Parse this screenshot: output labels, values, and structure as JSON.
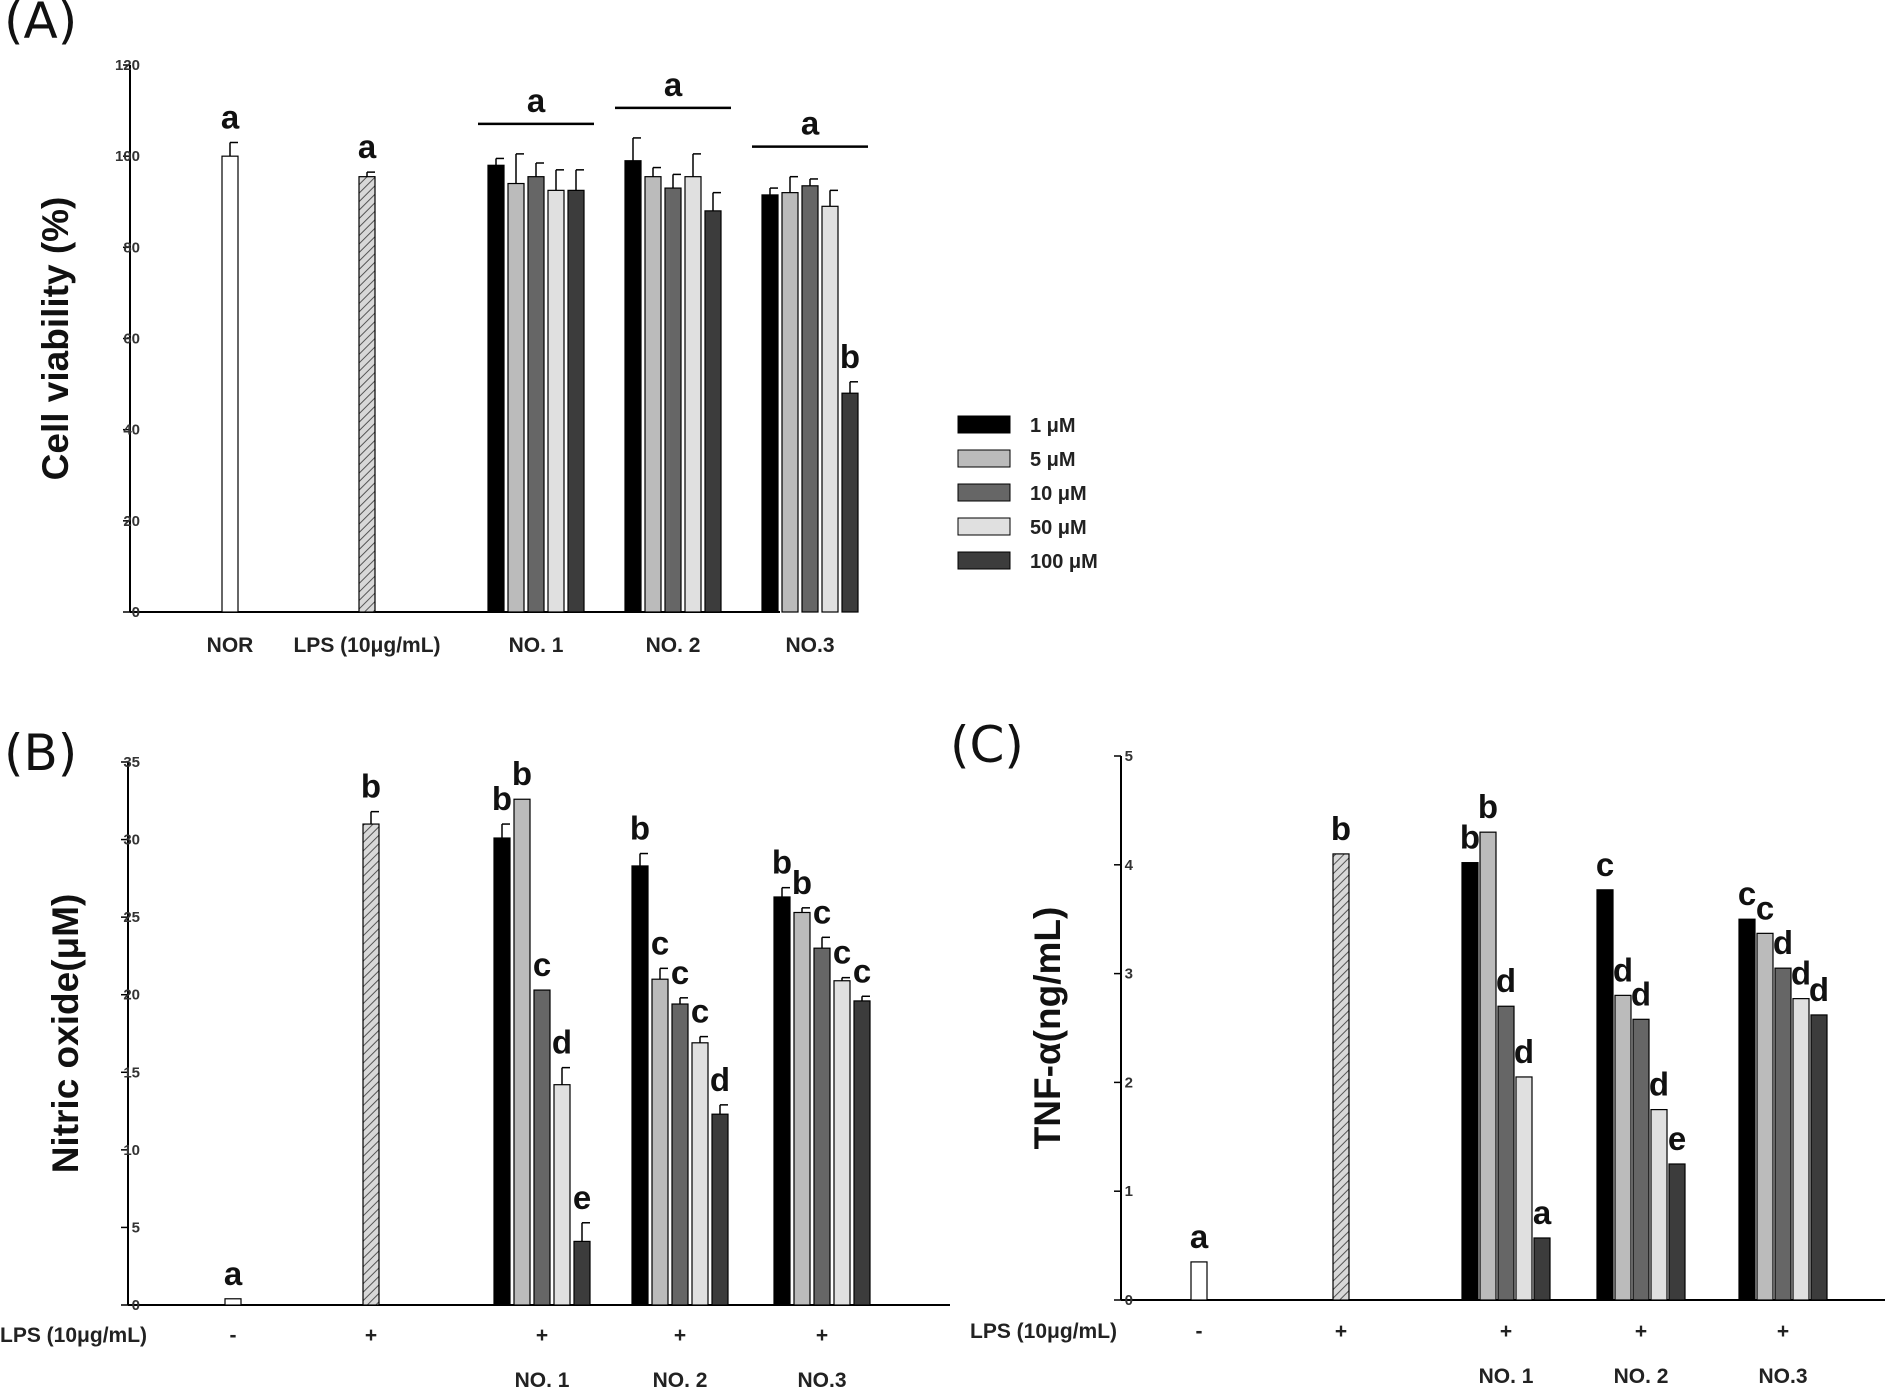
{
  "panels": {
    "A": {
      "letter": "(A)"
    },
    "B": {
      "letter": "(B)"
    },
    "C": {
      "letter": "(C)"
    }
  },
  "legend": {
    "items": [
      {
        "label": "1 μM",
        "color": "#000000"
      },
      {
        "label": "5 μM",
        "color": "#bbbbbb"
      },
      {
        "label": "10 μM",
        "color": "#666666"
      },
      {
        "label": "50 μM",
        "color": "#e0e0e0"
      },
      {
        "label": "100 μM",
        "color": "#3c3c3c"
      }
    ]
  },
  "chart_data": [
    {
      "id": "A",
      "type": "bar",
      "ylabel": "Cell viability (%)",
      "ylim": [
        0,
        120
      ],
      "yticks": [
        0,
        20,
        40,
        60,
        80,
        100,
        120
      ],
      "categories": [
        "NOR",
        "LPS (10μg/mL)",
        "NO. 1",
        "NO. 2",
        "NO.3"
      ],
      "groups": [
        {
          "category": "NOR",
          "bars": [
            {
              "series": "NOR",
              "value": 100,
              "error": 3,
              "label": "a"
            }
          ]
        },
        {
          "category": "LPS (10μg/mL)",
          "bars": [
            {
              "series": "LPS",
              "value": 95.5,
              "error": 1,
              "label": "a"
            }
          ]
        },
        {
          "category": "NO. 1",
          "group_label": "a",
          "bars": [
            {
              "series": "1 μM",
              "value": 98,
              "error": 1.5
            },
            {
              "series": "5 μM",
              "value": 94,
              "error": 6.5
            },
            {
              "series": "10 μM",
              "value": 95.5,
              "error": 3
            },
            {
              "series": "50 μM",
              "value": 92.5,
              "error": 4.5
            },
            {
              "series": "100 μM",
              "value": 92.5,
              "error": 4.5
            }
          ]
        },
        {
          "category": "NO. 2",
          "group_label": "a",
          "bars": [
            {
              "series": "1 μM",
              "value": 99,
              "error": 5
            },
            {
              "series": "5 μM",
              "value": 95.5,
              "error": 2
            },
            {
              "series": "10 μM",
              "value": 93,
              "error": 3
            },
            {
              "series": "50 μM",
              "value": 95.5,
              "error": 5
            },
            {
              "series": "100 μM",
              "value": 88,
              "error": 4
            }
          ]
        },
        {
          "category": "NO.3",
          "group_label": "a",
          "bars": [
            {
              "series": "1 μM",
              "value": 91.5,
              "error": 1.5
            },
            {
              "series": "5 μM",
              "value": 92,
              "error": 3.5
            },
            {
              "series": "10 μM",
              "value": 93.5,
              "error": 1.5
            },
            {
              "series": "50 μM",
              "value": 89,
              "error": 3.5
            },
            {
              "series": "100 μM",
              "value": 48,
              "error": 2.5,
              "label": "b"
            }
          ]
        }
      ]
    },
    {
      "id": "B",
      "type": "bar",
      "ylabel": "Nitric oxide(μM)",
      "ylim": [
        0,
        35
      ],
      "yticks": [
        0,
        5,
        10,
        15,
        20,
        25,
        30,
        35
      ],
      "row_label": "LPS (10μg/mL)",
      "categories": [
        "-",
        "+",
        "+",
        "+",
        "+"
      ],
      "subcategories": [
        "",
        "",
        "NO. 1",
        "NO. 2",
        "NO.3"
      ],
      "groups": [
        {
          "category": "-",
          "bars": [
            {
              "series": "NOR",
              "value": 0.4,
              "error": 0,
              "label": "a"
            }
          ]
        },
        {
          "category": "+",
          "bars": [
            {
              "series": "LPS",
              "value": 31,
              "error": 0.8,
              "label": "b"
            }
          ]
        },
        {
          "category": "NO. 1",
          "bars": [
            {
              "series": "1 μM",
              "value": 30.1,
              "error": 0.9,
              "label": "b"
            },
            {
              "series": "5 μM",
              "value": 32.6,
              "error": 0,
              "label": "b"
            },
            {
              "series": "10 μM",
              "value": 20.3,
              "error": 0,
              "label": "c"
            },
            {
              "series": "50 μM",
              "value": 14.2,
              "error": 1.1,
              "label": "d"
            },
            {
              "series": "100 μM",
              "value": 4.1,
              "error": 1.2,
              "label": "e"
            }
          ]
        },
        {
          "category": "NO. 2",
          "bars": [
            {
              "series": "1 μM",
              "value": 28.3,
              "error": 0.8,
              "label": "b"
            },
            {
              "series": "5 μM",
              "value": 21,
              "error": 0.7,
              "label": "c"
            },
            {
              "series": "10 μM",
              "value": 19.4,
              "error": 0.4,
              "label": "c"
            },
            {
              "series": "50 μM",
              "value": 16.9,
              "error": 0.4,
              "label": "c"
            },
            {
              "series": "100 μM",
              "value": 12.3,
              "error": 0.6,
              "label": "d"
            }
          ]
        },
        {
          "category": "NO.3",
          "bars": [
            {
              "series": "1 μM",
              "value": 26.3,
              "error": 0.6,
              "label": "b"
            },
            {
              "series": "5 μM",
              "value": 25.3,
              "error": 0.3,
              "label": "b"
            },
            {
              "series": "10 μM",
              "value": 23,
              "error": 0.7,
              "label": "c"
            },
            {
              "series": "50 μM",
              "value": 20.9,
              "error": 0.2,
              "label": "c"
            },
            {
              "series": "100 μM",
              "value": 19.6,
              "error": 0.3,
              "label": "c"
            }
          ]
        }
      ]
    },
    {
      "id": "C",
      "type": "bar",
      "ylabel": "TNF-α(ng/mL)",
      "ylim": [
        0,
        5
      ],
      "yticks": [
        0,
        1,
        2,
        3,
        4,
        5
      ],
      "row_label": "LPS (10μg/mL)",
      "categories": [
        "-",
        "+",
        "+",
        "+",
        "+"
      ],
      "subcategories": [
        "",
        "",
        "NO. 1",
        "NO. 2",
        "NO.3"
      ],
      "groups": [
        {
          "category": "-",
          "bars": [
            {
              "series": "NOR",
              "value": 0.35,
              "error": 0,
              "label": "a"
            }
          ]
        },
        {
          "category": "+",
          "bars": [
            {
              "series": "LPS",
              "value": 4.1,
              "error": 0,
              "label": "b"
            }
          ]
        },
        {
          "category": "NO. 1",
          "bars": [
            {
              "series": "1 μM",
              "value": 4.02,
              "error": 0,
              "label": "b"
            },
            {
              "series": "5 μM",
              "value": 4.3,
              "error": 0,
              "label": "b"
            },
            {
              "series": "10 μM",
              "value": 2.7,
              "error": 0,
              "label": "d"
            },
            {
              "series": "50 μM",
              "value": 2.05,
              "error": 0,
              "label": "d"
            },
            {
              "series": "100 μM",
              "value": 0.57,
              "error": 0,
              "label": "a"
            }
          ]
        },
        {
          "category": "NO. 2",
          "bars": [
            {
              "series": "1 μM",
              "value": 3.77,
              "error": 0,
              "label": "c"
            },
            {
              "series": "5 μM",
              "value": 2.8,
              "error": 0,
              "label": "d"
            },
            {
              "series": "10 μM",
              "value": 2.58,
              "error": 0,
              "label": "d"
            },
            {
              "series": "50 μM",
              "value": 1.75,
              "error": 0,
              "label": "d"
            },
            {
              "series": "100 μM",
              "value": 1.25,
              "error": 0,
              "label": "e"
            }
          ]
        },
        {
          "category": "NO.3",
          "bars": [
            {
              "series": "1 μM",
              "value": 3.5,
              "error": 0,
              "label": "c"
            },
            {
              "series": "5 μM",
              "value": 3.37,
              "error": 0,
              "label": "c"
            },
            {
              "series": "10 μM",
              "value": 3.05,
              "error": 0,
              "label": "d"
            },
            {
              "series": "50 μM",
              "value": 2.77,
              "error": 0,
              "label": "d"
            },
            {
              "series": "100 μM",
              "value": 2.62,
              "error": 0,
              "label": "d"
            }
          ]
        }
      ]
    }
  ]
}
